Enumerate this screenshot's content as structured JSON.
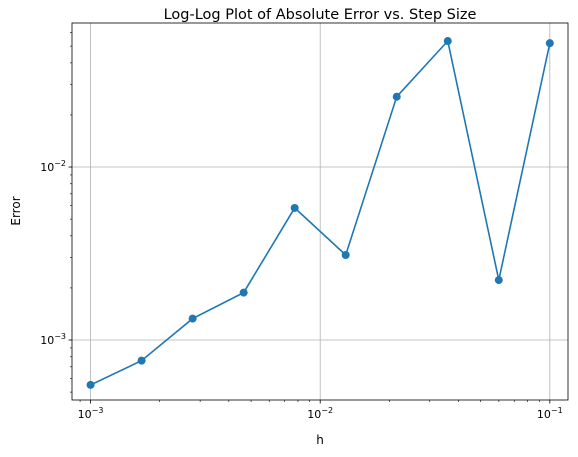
{
  "chart_data": {
    "type": "line",
    "title": "Log-Log Plot of Absolute Error vs. Step Size",
    "xlabel": "h",
    "ylabel": "Error",
    "xscale": "log",
    "yscale": "log",
    "xlim": [
      0.00083,
      0.12
    ],
    "ylim": [
      0.00045,
      0.068
    ],
    "grid": true,
    "color": "#1f77b4",
    "x_ticks": [
      {
        "value": 0.001,
        "base": "10",
        "exp": "−3"
      },
      {
        "value": 0.01,
        "base": "10",
        "exp": "−2"
      },
      {
        "value": 0.1,
        "base": "10",
        "exp": "−1"
      }
    ],
    "y_ticks": [
      {
        "value": 0.001,
        "base": "10",
        "exp": "−3"
      },
      {
        "value": 0.01,
        "base": "10",
        "exp": "−2"
      }
    ],
    "series": [
      {
        "x": [
          0.001,
          0.001668,
          0.002783,
          0.004642,
          0.007743,
          0.012915,
          0.021544,
          0.035938,
          0.059948,
          0.1
        ],
        "y": [
          0.00055,
          0.00076,
          0.00133,
          0.00188,
          0.0058,
          0.0031,
          0.0255,
          0.0535,
          0.00222,
          0.052
        ]
      }
    ]
  }
}
